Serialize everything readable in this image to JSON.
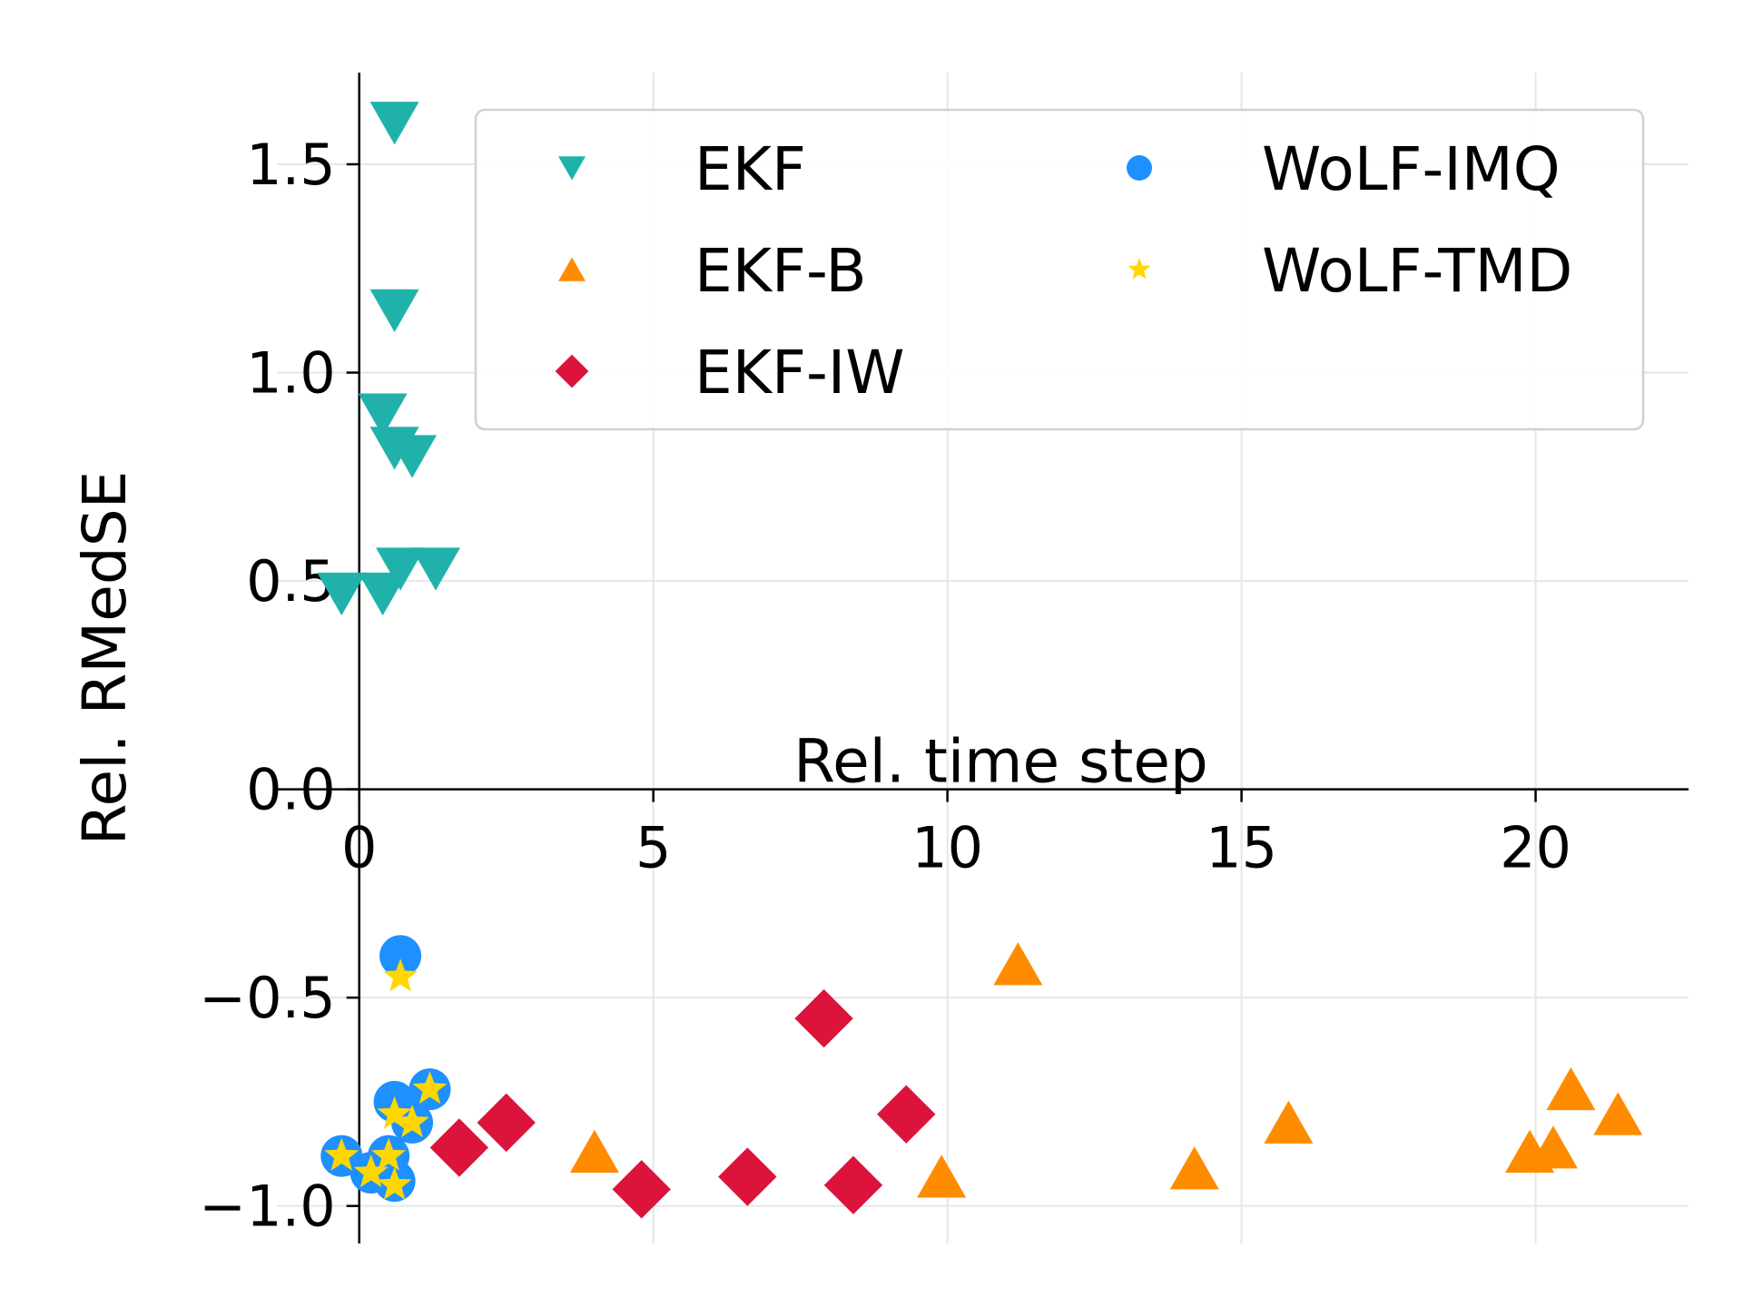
{
  "chart_data": {
    "type": "scatter",
    "xlabel": "Rel. time step",
    "ylabel": "Rel. RMedSE",
    "xlim": [
      -1.4,
      22.6
    ],
    "ylim": [
      -1.09,
      1.72
    ],
    "xticks": [
      0,
      5,
      10,
      15,
      20
    ],
    "xtick_labels": [
      "0",
      "5",
      "10",
      "15",
      "20"
    ],
    "yticks": [
      -1.0,
      -0.5,
      0.0,
      0.5,
      1.0,
      1.5
    ],
    "ytick_labels": [
      "−1.0",
      "−0.5",
      "0.0",
      "0.5",
      "1.0",
      "1.5"
    ],
    "grid": true,
    "legend_position": "top-right",
    "legend_columns": 2,
    "series": [
      {
        "name": "EKF",
        "marker": "triangle-down",
        "color": "#20b2aa",
        "points": [
          [
            0.6,
            1.6
          ],
          [
            0.6,
            1.15
          ],
          [
            0.4,
            0.9
          ],
          [
            0.6,
            0.82
          ],
          [
            0.9,
            0.8
          ],
          [
            -0.3,
            0.47
          ],
          [
            0.4,
            0.47
          ],
          [
            0.7,
            0.53
          ],
          [
            1.3,
            0.53
          ]
        ]
      },
      {
        "name": "EKF-B",
        "marker": "triangle-up",
        "color": "#ff8c00",
        "points": [
          [
            11.2,
            -0.42
          ],
          [
            4.0,
            -0.87
          ],
          [
            9.9,
            -0.93
          ],
          [
            14.2,
            -0.91
          ],
          [
            15.8,
            -0.8
          ],
          [
            19.9,
            -0.87
          ],
          [
            20.3,
            -0.86
          ],
          [
            20.6,
            -0.72
          ],
          [
            21.4,
            -0.78
          ]
        ]
      },
      {
        "name": "EKF-IW",
        "marker": "diamond",
        "color": "#dc143c",
        "points": [
          [
            1.7,
            -0.86
          ],
          [
            2.5,
            -0.8
          ],
          [
            4.8,
            -0.96
          ],
          [
            6.6,
            -0.93
          ],
          [
            7.9,
            -0.55
          ],
          [
            8.4,
            -0.95
          ],
          [
            9.3,
            -0.78
          ]
        ]
      },
      {
        "name": "WoLF-IMQ",
        "marker": "circle",
        "color": "#1e90ff",
        "points": [
          [
            0.7,
            -0.4
          ],
          [
            0.6,
            -0.75
          ],
          [
            0.9,
            -0.8
          ],
          [
            1.2,
            -0.72
          ],
          [
            -0.3,
            -0.88
          ],
          [
            0.2,
            -0.92
          ],
          [
            0.5,
            -0.88
          ],
          [
            0.6,
            -0.94
          ]
        ]
      },
      {
        "name": "WoLF-TMD",
        "marker": "star",
        "color": "#ffd700",
        "points": [
          [
            0.7,
            -0.45
          ],
          [
            0.6,
            -0.78
          ],
          [
            0.9,
            -0.8
          ],
          [
            1.2,
            -0.72
          ],
          [
            -0.3,
            -0.88
          ],
          [
            0.2,
            -0.92
          ],
          [
            0.5,
            -0.88
          ],
          [
            0.6,
            -0.95
          ]
        ]
      }
    ]
  }
}
